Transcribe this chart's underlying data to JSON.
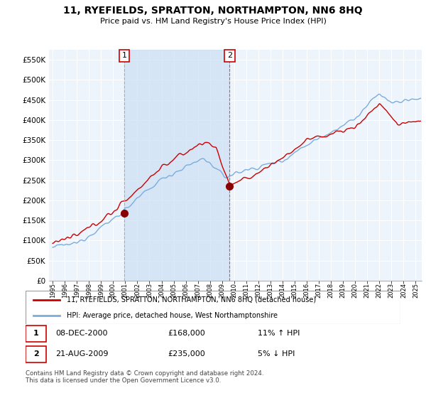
{
  "title": "11, RYEFIELDS, SPRATTON, NORTHAMPTON, NN6 8HQ",
  "subtitle": "Price paid vs. HM Land Registry's House Price Index (HPI)",
  "ylim": [
    0,
    575000
  ],
  "yticks": [
    0,
    50000,
    100000,
    150000,
    200000,
    250000,
    300000,
    350000,
    400000,
    450000,
    500000,
    550000
  ],
  "ytick_labels": [
    "£0",
    "£50K",
    "£100K",
    "£150K",
    "£200K",
    "£250K",
    "£300K",
    "£350K",
    "£400K",
    "£450K",
    "£500K",
    "£550K"
  ],
  "xlim_min": 1994.7,
  "xlim_max": 2025.5,
  "background_color": "#ffffff",
  "plot_background": "#ddeeff",
  "shade_color": "#ddeeff",
  "grid_color": "#ffffff",
  "transaction1": {
    "date": 2000.92,
    "price": 168000,
    "label": "1",
    "pct": "11% ↑ HPI",
    "date_str": "08-DEC-2000",
    "price_str": "£168,000"
  },
  "transaction2": {
    "date": 2009.63,
    "price": 235000,
    "label": "2",
    "pct": "5% ↓ HPI",
    "date_str": "21-AUG-2009",
    "price_str": "£235,000"
  },
  "legend_line1": "11, RYEFIELDS, SPRATTON, NORTHAMPTON, NN6 8HQ (detached house)",
  "legend_line2": "HPI: Average price, detached house, West Northamptonshire",
  "footer": "Contains HM Land Registry data © Crown copyright and database right 2024.\nThis data is licensed under the Open Government Licence v3.0.",
  "line_color_red": "#cc0000",
  "line_color_blue": "#7aaddd",
  "vline1_color": "#aaaaaa",
  "vline2_color": "#ff4444",
  "marker_color_red": "#880000"
}
